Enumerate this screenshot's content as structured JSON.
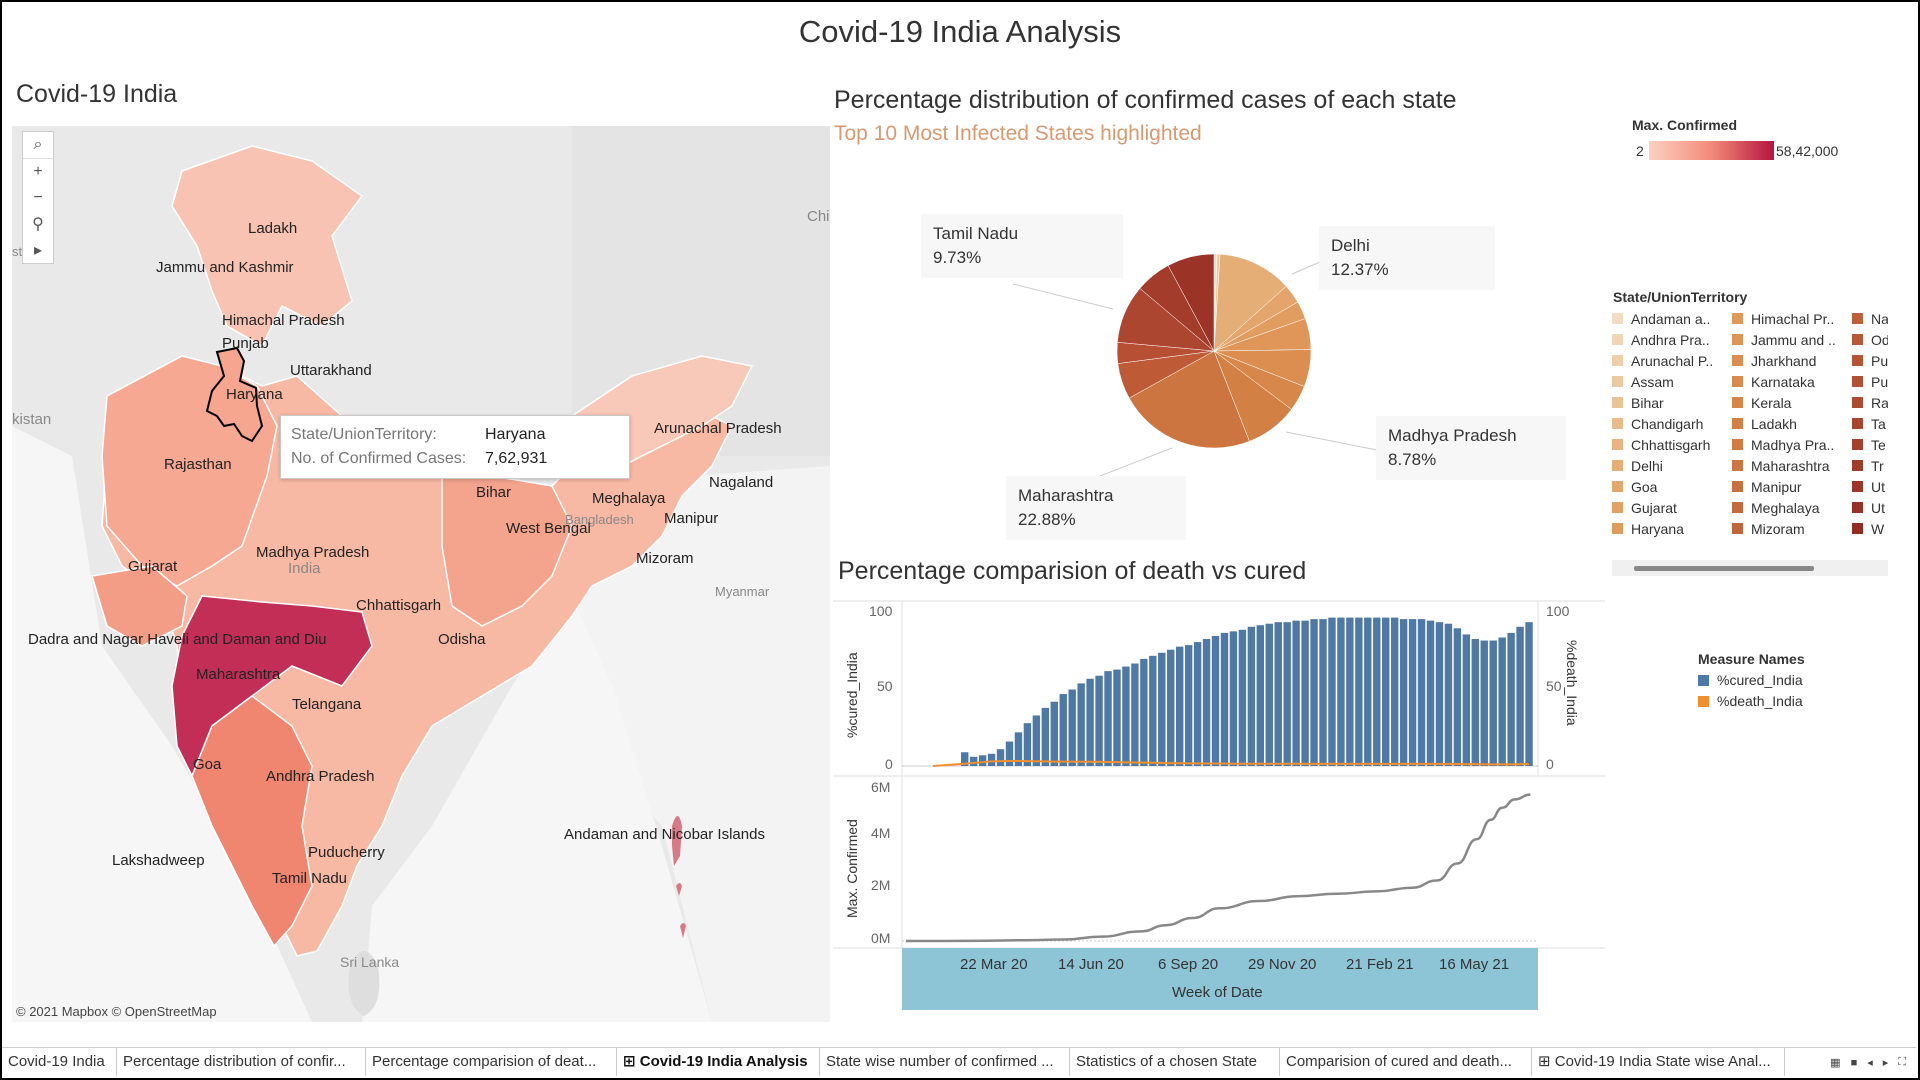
{
  "dashboard": {
    "title": "Covid-19 India Analysis"
  },
  "map": {
    "title": "Covid-19 India",
    "tools": [
      {
        "icon": "search-icon",
        "glyph": "⌕"
      },
      {
        "icon": "zoom-in-icon",
        "glyph": "+"
      },
      {
        "icon": "zoom-out-icon",
        "glyph": "−"
      },
      {
        "icon": "pin-icon",
        "glyph": "⚲"
      },
      {
        "icon": "play-icon",
        "glyph": "▸"
      }
    ],
    "labels": [
      "Ladakh",
      "Jammu and Kashmir",
      "Himachal Pradesh",
      "Punjab",
      "Uttarakhand",
      "Haryana",
      "Rajasthan",
      "Arunachal Pradesh",
      "Bihar",
      "Nagaland",
      "Meghalaya",
      "Manipur",
      "West Bengal",
      "Bangladesh",
      "Mizoram",
      "Madhya Pradesh",
      "India",
      "Gujarat",
      "Chhattisgarh",
      "Odisha",
      "Myanmar",
      "Dadra and Nagar Haveli and Daman and Diu",
      "Maharashtra",
      "Telangana",
      "Goa",
      "Andhra Pradesh",
      "Puducherry",
      "Andaman and Nicobar Islands",
      "Lakshadweep",
      "Tamil Nadu",
      "Sri Lanka",
      "Chi",
      "kistan",
      "st"
    ],
    "copyright": "© 2021 Mapbox © OpenStreetMap",
    "tooltip": {
      "state_key": "State/UnionTerritory:",
      "state_val": "Haryana",
      "cases_key": "No. of Confirmed Cases:",
      "cases_val": "7,62,931"
    }
  },
  "pie": {
    "title": "Percentage distribution of confirmed cases of each state",
    "subtitle": "Top 10 Most Infected States highlighted",
    "callouts": [
      {
        "name": "Tamil Nadu",
        "value": "9.73%"
      },
      {
        "name": "Delhi",
        "value": "12.37%"
      },
      {
        "name": "Madhya Pradesh",
        "value": "8.78%"
      },
      {
        "name": "Maharashtra",
        "value": "22.88%"
      }
    ]
  },
  "color_legend": {
    "title": "Max. Confirmed",
    "min": "2",
    "max": "58,42,000"
  },
  "state_legend": {
    "title": "State/UnionTerritory",
    "columns": [
      [
        {
          "label": "Andaman a..",
          "color": "#f2dcc2"
        },
        {
          "label": "Andhra Pra..",
          "color": "#f0d6b6"
        },
        {
          "label": "Arunachal P..",
          "color": "#efd0ab"
        },
        {
          "label": "Assam",
          "color": "#edc9a0"
        },
        {
          "label": "Bihar",
          "color": "#ecc396"
        },
        {
          "label": "Chandigarh",
          "color": "#eabc8b"
        },
        {
          "label": "Chhattisgarh",
          "color": "#e8b581"
        },
        {
          "label": "Delhi",
          "color": "#e6ae77"
        },
        {
          "label": "Goa",
          "color": "#e4a86e"
        },
        {
          "label": "Gujarat",
          "color": "#e2a265"
        },
        {
          "label": "Haryana",
          "color": "#e09c5d"
        }
      ],
      [
        {
          "label": "Himachal Pr..",
          "color": "#e0995b"
        },
        {
          "label": "Jammu and ..",
          "color": "#de9455"
        },
        {
          "label": "Jharkhand",
          "color": "#dc8e50"
        },
        {
          "label": "Karnataka",
          "color": "#da8a4c"
        },
        {
          "label": "Kerala",
          "color": "#d88548"
        },
        {
          "label": "Ladakh",
          "color": "#d48044"
        },
        {
          "label": "Madhya Pra..",
          "color": "#d07b42"
        },
        {
          "label": "Maharashtra",
          "color": "#cc7540"
        },
        {
          "label": "Manipur",
          "color": "#c8703e"
        },
        {
          "label": "Meghalaya",
          "color": "#c56a3c"
        },
        {
          "label": "Mizoram",
          "color": "#c1653a"
        }
      ],
      [
        {
          "label": "Na",
          "color": "#bd5f38"
        },
        {
          "label": "Od",
          "color": "#b95a36"
        },
        {
          "label": "Pu",
          "color": "#b55534"
        },
        {
          "label": "Pu",
          "color": "#b15032"
        },
        {
          "label": "Ra",
          "color": "#ad4a30"
        },
        {
          "label": "Ta",
          "color": "#a9452e"
        },
        {
          "label": "Te",
          "color": "#a5402c"
        },
        {
          "label": "Tr",
          "color": "#a13b2a"
        },
        {
          "label": "Ut",
          "color": "#9d3628"
        },
        {
          "label": "Ut",
          "color": "#993126"
        },
        {
          "label": "W",
          "color": "#952c24"
        }
      ]
    ]
  },
  "measure_legend": {
    "title": "Measure Names",
    "items": [
      {
        "label": "%cured_India",
        "color": "#4e79a7"
      },
      {
        "label": "%death_India",
        "color": "#f28e2b"
      }
    ]
  },
  "combo": {
    "title": "Percentage comparision of death vs cured",
    "top_left_axis": "%cured_India",
    "top_right_axis": "%death_India",
    "bottom_axis": "Max. Confirmed",
    "x_axis_title": "Week of Date",
    "top_ticks": [
      "100",
      "50",
      "0"
    ],
    "bottom_ticks": [
      "6M",
      "4M",
      "2M",
      "0M"
    ],
    "date_ticks": [
      "22 Mar 20",
      "14 Jun 20",
      "6 Sep 20",
      "29 Nov 20",
      "21 Feb 21",
      "16 May 21"
    ]
  },
  "chart_data": [
    {
      "type": "bar",
      "title": "Percentage comparision of death vs cured",
      "xlabel": "Week of Date",
      "ylabel": "%cured_India",
      "ylim": [
        0,
        100
      ],
      "x_range": [
        "2020-01-27",
        "2021-06-07"
      ],
      "x": [
        "2020-03-16",
        "2020-03-23",
        "2020-03-30",
        "2020-04-06",
        "2020-04-13",
        "2020-04-20",
        "2020-04-27",
        "2020-05-04",
        "2020-05-11",
        "2020-05-18",
        "2020-05-25",
        "2020-06-01",
        "2020-06-08",
        "2020-06-15",
        "2020-06-22",
        "2020-06-29",
        "2020-07-06",
        "2020-07-13",
        "2020-07-20",
        "2020-07-27",
        "2020-08-03",
        "2020-08-10",
        "2020-08-17",
        "2020-08-24",
        "2020-08-31",
        "2020-09-07",
        "2020-09-14",
        "2020-09-21",
        "2020-09-28",
        "2020-10-05",
        "2020-10-12",
        "2020-10-19",
        "2020-10-26",
        "2020-11-02",
        "2020-11-09",
        "2020-11-16",
        "2020-11-23",
        "2020-11-30",
        "2020-12-07",
        "2020-12-14",
        "2020-12-21",
        "2020-12-28",
        "2021-01-04",
        "2021-01-11",
        "2021-01-18",
        "2021-01-25",
        "2021-02-01",
        "2021-02-08",
        "2021-02-15",
        "2021-02-22",
        "2021-03-01",
        "2021-03-08",
        "2021-03-15",
        "2021-03-22",
        "2021-03-29",
        "2021-04-05",
        "2021-04-12",
        "2021-04-19",
        "2021-04-26",
        "2021-05-03",
        "2021-05-10",
        "2021-05-17",
        "2021-05-24",
        "2021-05-31"
      ],
      "series": [
        {
          "name": "%cured_India",
          "values": [
            9,
            6,
            7,
            8,
            11,
            16,
            22,
            28,
            33,
            38,
            42,
            47,
            50,
            54,
            57,
            59,
            62,
            63,
            65,
            67,
            70,
            72,
            74,
            76,
            78,
            79,
            81,
            83,
            85,
            87,
            88,
            89,
            91,
            92,
            93,
            94,
            94,
            95,
            95,
            96,
            96,
            97,
            97,
            97,
            97,
            97,
            97,
            97,
            97,
            96,
            96,
            96,
            95,
            94,
            93,
            90,
            86,
            83,
            82,
            82,
            84,
            87,
            91,
            94
          ]
        },
        {
          "name": "%death_India",
          "values": [
            1.5,
            2,
            2.5,
            3,
            3.2,
            3.3,
            3.3,
            3.2,
            3.1,
            3,
            2.9,
            2.9,
            2.9,
            2.8,
            2.8,
            2.7,
            2.6,
            2.5,
            2.4,
            2.3,
            2.2,
            2.1,
            2,
            1.9,
            1.8,
            1.7,
            1.7,
            1.6,
            1.6,
            1.6,
            1.5,
            1.5,
            1.5,
            1.5,
            1.5,
            1.5,
            1.5,
            1.5,
            1.4,
            1.4,
            1.4,
            1.4,
            1.4,
            1.4,
            1.4,
            1.4,
            1.4,
            1.4,
            1.4,
            1.4,
            1.4,
            1.4,
            1.4,
            1.3,
            1.3,
            1.3,
            1.2,
            1.2,
            1.1,
            1.1,
            1.1,
            1.1,
            1.2,
            1.2
          ]
        }
      ]
    },
    {
      "type": "line",
      "xlabel": "Week of Date",
      "ylabel": "Max. Confirmed",
      "ylim": [
        0,
        6400000
      ],
      "x_range": [
        "2020-01-27",
        "2021-06-07"
      ],
      "x": [
        "2020-01-30",
        "2020-03-01",
        "2020-04-01",
        "2020-05-01",
        "2020-06-01",
        "2020-07-01",
        "2020-08-01",
        "2020-08-20",
        "2020-09-10",
        "2020-10-01",
        "2020-11-01",
        "2020-12-01",
        "2021-01-01",
        "2021-02-01",
        "2021-03-01",
        "2021-03-20",
        "2021-04-05",
        "2021-04-20",
        "2021-05-01",
        "2021-05-10",
        "2021-05-20",
        "2021-06-01"
      ],
      "series": [
        {
          "name": "Max. Confirmed",
          "values": [
            0,
            0,
            10000,
            30000,
            60000,
            180000,
            400000,
            650000,
            950000,
            1350000,
            1650000,
            1850000,
            1950000,
            2050000,
            2200000,
            2500000,
            3200000,
            4200000,
            5000000,
            5500000,
            5850000,
            6050000
          ]
        }
      ]
    }
  ],
  "tabs": [
    {
      "label": "Covid-19 India",
      "active": false
    },
    {
      "label": "Percentage distribution of confir...",
      "active": false
    },
    {
      "label": "Percentage comparision of deat...",
      "active": false
    },
    {
      "label": "⊞ Covid-19 India Analysis",
      "active": true
    },
    {
      "label": "State wise number of confirmed ...",
      "active": false
    },
    {
      "label": "Statistics of a chosen State",
      "active": false
    },
    {
      "label": "Comparision of cured and death...",
      "active": false
    },
    {
      "label": "⊞ Covid-19 India State wise Anal...",
      "active": false
    }
  ],
  "tab_controls": [
    {
      "icon": "grid-small-icon",
      "glyph": "▦"
    },
    {
      "icon": "grid-large-icon",
      "glyph": "■"
    },
    {
      "icon": "prev-icon",
      "glyph": "◂"
    },
    {
      "icon": "next-icon",
      "glyph": "▸"
    },
    {
      "icon": "fit-icon",
      "glyph": "⛶"
    }
  ]
}
